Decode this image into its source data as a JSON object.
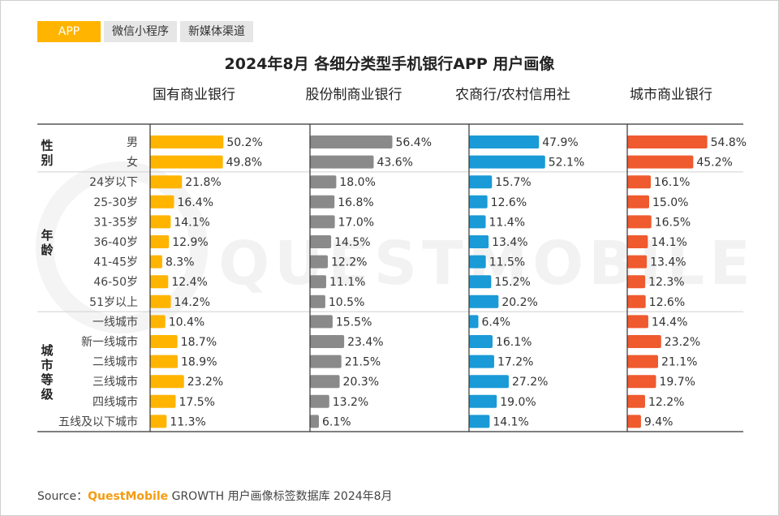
{
  "tabs": [
    {
      "label": "APP",
      "active": true
    },
    {
      "label": "微信小程序",
      "active": false
    },
    {
      "label": "新媒体渠道",
      "active": false
    }
  ],
  "title": "2024年8月 各细分类型手机银行APP 用户画像",
  "watermark": "QUESTMOBILE",
  "source": {
    "prefix": "Source：",
    "brand": "QuestMobile",
    "rest": " GROWTH 用户画像标签数据库 2024年8月"
  },
  "chart_data": {
    "type": "bar",
    "orientation": "horizontal",
    "groups": [
      {
        "name": "性别",
        "categories": [
          "男",
          "女"
        ]
      },
      {
        "name": "年龄",
        "categories": [
          "24岁以下",
          "25-30岁",
          "31-35岁",
          "36-40岁",
          "41-45岁",
          "46-50岁",
          "51岁以上"
        ]
      },
      {
        "name": "城市等级",
        "categories": [
          "一线城市",
          "新一线城市",
          "二线城市",
          "三线城市",
          "四线城市",
          "五线及以下城市"
        ]
      }
    ],
    "series": [
      {
        "name": "国有商业银行",
        "color": "#ffb400",
        "values": [
          50.2,
          49.8,
          21.8,
          16.4,
          14.1,
          12.9,
          8.3,
          12.4,
          14.2,
          10.4,
          18.7,
          18.9,
          23.2,
          17.5,
          11.3
        ]
      },
      {
        "name": "股份制商业银行",
        "color": "#8a8a8a",
        "values": [
          56.4,
          43.6,
          18.0,
          16.8,
          17.0,
          14.5,
          12.2,
          11.1,
          10.5,
          15.5,
          23.4,
          21.5,
          20.3,
          13.2,
          6.1
        ]
      },
      {
        "name": "农商行/农村信用社",
        "color": "#1a9ad6",
        "values": [
          47.9,
          52.1,
          15.7,
          12.6,
          11.4,
          13.4,
          11.5,
          15.2,
          20.2,
          6.4,
          16.1,
          17.2,
          27.2,
          19.0,
          14.1
        ]
      },
      {
        "name": "城市商业银行",
        "color": "#ef5a2f",
        "values": [
          54.8,
          45.2,
          16.1,
          15.0,
          16.5,
          14.1,
          13.4,
          12.3,
          12.6,
          14.4,
          23.2,
          21.1,
          19.7,
          12.2,
          9.4
        ]
      }
    ],
    "value_suffix": "%"
  }
}
